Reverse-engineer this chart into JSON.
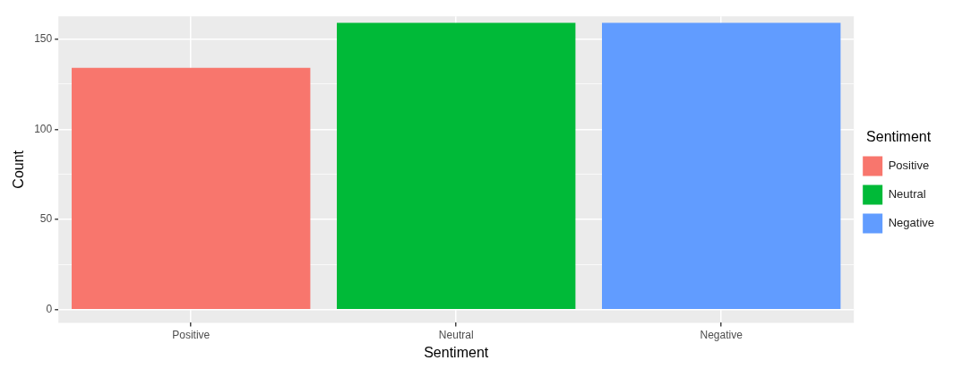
{
  "chart_data": {
    "type": "bar",
    "xlabel": "Sentiment",
    "ylabel": "Count",
    "legend_title": "Sentiment",
    "categories": [
      "Positive",
      "Neutral",
      "Negative"
    ],
    "series": [
      {
        "name": "Positive",
        "color": "#f8766d",
        "values": [
          134,
          null,
          null
        ]
      },
      {
        "name": "Neutral",
        "color": "#00ba38",
        "values": [
          null,
          159,
          null
        ]
      },
      {
        "name": "Negative",
        "color": "#619cff",
        "values": [
          null,
          null,
          159
        ]
      }
    ],
    "ylim": [
      -7.3,
      162.6
    ],
    "yticks": [
      0,
      {
        "value": 25,
        "label": null
      },
      50,
      {
        "value": 75,
        "label": null
      },
      100,
      {
        "value": 125,
        "label": null
      },
      150
    ],
    "grid": true,
    "legend": "right"
  }
}
